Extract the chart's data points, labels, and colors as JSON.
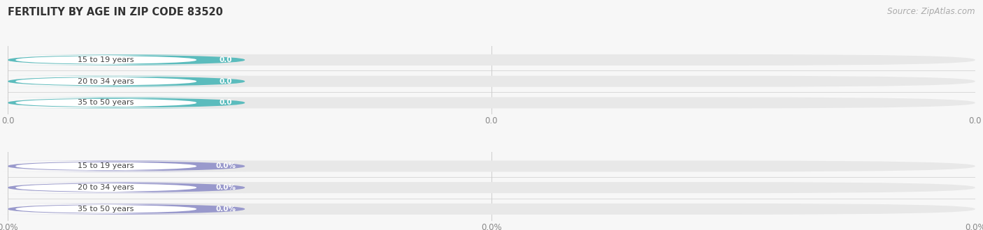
{
  "title": "FERTILITY BY AGE IN ZIP CODE 83520",
  "source_text": "Source: ZipAtlas.com",
  "background_color": "#f7f7f7",
  "bar_background": "#e8e8e8",
  "groups": [
    {
      "rows": [
        {
          "label": "15 to 19 years",
          "value_label": "0.0"
        },
        {
          "label": "20 to 34 years",
          "value_label": "0.0"
        },
        {
          "label": "35 to 50 years",
          "value_label": "0.0"
        }
      ],
      "color": "#5bbcbd",
      "label_color": "#444444",
      "value_text_color": "#ffffff",
      "axis_ticks": [
        "0.0",
        "0.0",
        "0.0"
      ]
    },
    {
      "rows": [
        {
          "label": "15 to 19 years",
          "value_label": "0.0%"
        },
        {
          "label": "20 to 34 years",
          "value_label": "0.0%"
        },
        {
          "label": "35 to 50 years",
          "value_label": "0.0%"
        }
      ],
      "color": "#9999cc",
      "label_color": "#444444",
      "value_text_color": "#ffffff",
      "axis_ticks": [
        "0.0%",
        "0.0%",
        "0.0%"
      ]
    }
  ],
  "figsize": [
    14.06,
    3.3
  ],
  "dpi": 100
}
